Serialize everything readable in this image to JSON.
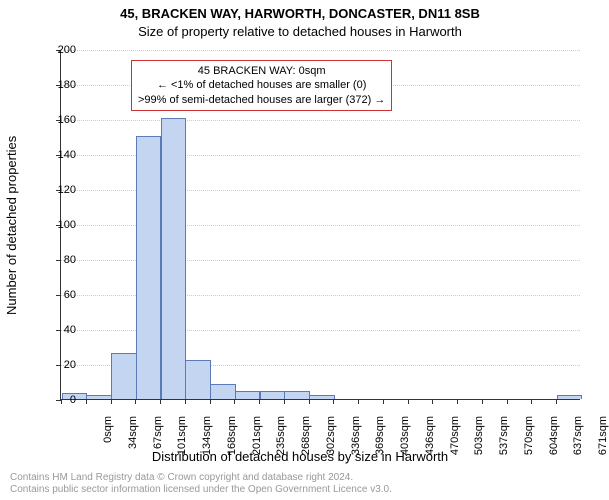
{
  "title_line1": "45, BRACKEN WAY, HARWORTH, DONCASTER, DN11 8SB",
  "title_line2": "Size of property relative to detached houses in Harworth",
  "ylabel": "Number of detached properties",
  "xlabel": "Distribution of detached houses by size in Harworth",
  "footer_line1": "Contains HM Land Registry data © Crown copyright and database right 2024.",
  "footer_line2": "Contains public sector information licensed under the Open Government Licence v3.0.",
  "chart": {
    "type": "histogram",
    "ylim": [
      0,
      200
    ],
    "ytick_step": 20,
    "yticks": [
      0,
      20,
      40,
      60,
      80,
      100,
      120,
      140,
      160,
      180,
      200
    ],
    "xtick_labels": [
      "0sqm",
      "34sqm",
      "67sqm",
      "101sqm",
      "134sqm",
      "168sqm",
      "201sqm",
      "235sqm",
      "268sqm",
      "302sqm",
      "336sqm",
      "369sqm",
      "403sqm",
      "436sqm",
      "470sqm",
      "503sqm",
      "537sqm",
      "570sqm",
      "604sqm",
      "637sqm",
      "671sqm"
    ],
    "bars": [
      3,
      2,
      26,
      150,
      160,
      22,
      8,
      4,
      4,
      4,
      2,
      0,
      0,
      0,
      0,
      0,
      0,
      0,
      0,
      0,
      2
    ],
    "bar_fill": "#c4d5f2",
    "bar_stroke": "#5b7bb8",
    "grid_color": "#cccccc",
    "axis_color": "#333333",
    "background": "#ffffff",
    "tick_fontsize": 11,
    "label_fontsize": 13,
    "title_fontsize": 13
  },
  "annotation": {
    "line1": "45 BRACKEN WAY: 0sqm",
    "line2": "← <1% of detached houses are smaller (0)",
    "line3": ">99% of semi-detached houses are larger (372) →",
    "border_color": "#cc3333",
    "fontsize": 11
  }
}
